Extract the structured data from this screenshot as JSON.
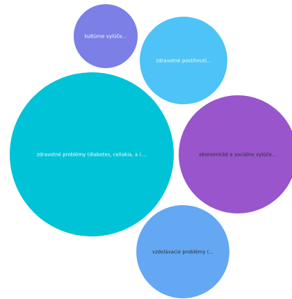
{
  "chart_data": {
    "type": "bubble",
    "title": "",
    "legend": "none",
    "series": [
      {
        "label": "kultúrne vylúče...",
        "color": "#7b7fe6"
      },
      {
        "label": "zdravotné postihnutí...",
        "color": "#4dc3f7"
      },
      {
        "label": "zdravotné problémy (diabetes, celiakia, a i....",
        "color": "#00c3d7"
      },
      {
        "label": "ekonomické a sociálne vylúče...",
        "color": "#9955cc"
      },
      {
        "label": "vzdelávacie problémy (...",
        "color": "#64a8f4"
      }
    ]
  }
}
